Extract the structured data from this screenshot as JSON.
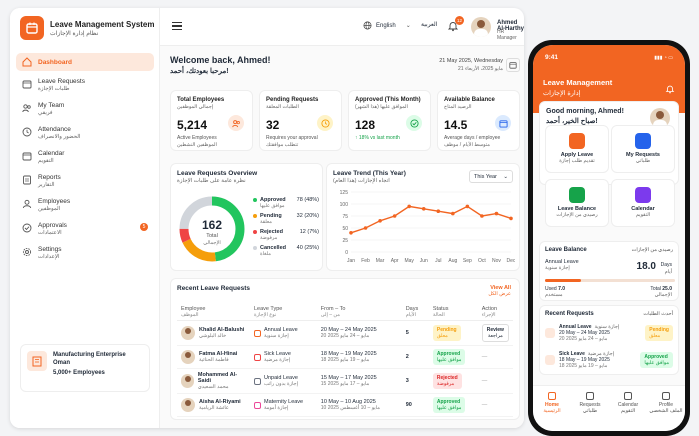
{
  "brand": {
    "title": "Leave Management System",
    "title_ar": "نظام إدارة الإجازات"
  },
  "sidebar": {
    "items": [
      {
        "label": "Dashboard",
        "label_ar": ""
      },
      {
        "label": "Leave Requests",
        "label_ar": "طلبات الإجازة"
      },
      {
        "label": "My Team",
        "label_ar": "فريقي"
      },
      {
        "label": "Attendance",
        "label_ar": "الحضور والانصراف"
      },
      {
        "label": "Calendar",
        "label_ar": "التقويم"
      },
      {
        "label": "Reports",
        "label_ar": "التقارير"
      },
      {
        "label": "Employees",
        "label_ar": "الموظفين"
      },
      {
        "label": "Approvals",
        "label_ar": "الاعتمادات",
        "badge": "5"
      },
      {
        "label": "Settings",
        "label_ar": "الإعدادات"
      }
    ],
    "org": {
      "name": "Manufacturing Enterprise Oman",
      "count": "5,000+ Employees"
    }
  },
  "header": {
    "language": "English",
    "arabic": "العربية",
    "notif_count": "12",
    "user_name": "Ahmed Al-Harthy",
    "user_role": "HR Manager"
  },
  "welcome": {
    "title": "Welcome back, Ahmed!",
    "title_ar": "مرحبا بعودتك، أحمد!",
    "date": "21 May 2025, Wednesday",
    "date_ar": "21 مايو 2025، الأربعاء"
  },
  "stats": [
    {
      "label": "Total Employees",
      "label_ar": "إجمالي الموظفين",
      "value": "5,214",
      "sub": "Active Employees",
      "sub_ar": "الموظفين النشطين",
      "color": "#f26522",
      "bg": "#fde8dc"
    },
    {
      "label": "Pending Requests",
      "label_ar": "الطلبات المعلقة",
      "value": "32",
      "sub": "Requires your approval",
      "sub_ar": "تتطلب موافقتك",
      "color": "#f59e0b",
      "bg": "#fef3c7"
    },
    {
      "label": "Approved (This Month)",
      "label_ar": "الموافق عليها (هذا الشهر)",
      "value": "128",
      "sub": "↑ 18% vs last month",
      "sub_ar": "",
      "color": "#16a34a",
      "bg": "#dcfce7"
    },
    {
      "label": "Available Balance",
      "label_ar": "الرصيد المتاح",
      "value": "14.5",
      "sub": "Average days / employee",
      "sub_ar": "متوسط الأيام / موظف",
      "color": "#2563eb",
      "bg": "#dbeafe"
    }
  ],
  "overview": {
    "title": "Leave Requests Overview",
    "title_ar": "نظرة عامة على طلبات الإجازة",
    "center_value": "162",
    "center_label": "Total",
    "center_label_ar": "الإجمالي",
    "legend": [
      {
        "label": "Approved",
        "label_ar": "موافق عليها",
        "value": "78 (48%)",
        "fraction": 0.48,
        "color": "#22c55e"
      },
      {
        "label": "Pending",
        "label_ar": "معلقة",
        "value": "32 (20%)",
        "fraction": 0.2,
        "color": "#f59e0b"
      },
      {
        "label": "Rejected",
        "label_ar": "مرفوضة",
        "value": "12 (7%)",
        "fraction": 0.07,
        "color": "#ef4444"
      },
      {
        "label": "Cancelled",
        "label_ar": "ملغاة",
        "value": "40 (25%)",
        "fraction": 0.25,
        "color": "#d1d5db"
      }
    ]
  },
  "trend": {
    "title": "Leave Trend (This Year)",
    "title_ar": "اتجاه الإجازات (هذا العام)",
    "select": "This Year"
  },
  "chart_data": {
    "type": "line",
    "categories": [
      "Jan",
      "Feb",
      "Mar",
      "Apr",
      "May",
      "Jun",
      "Jul",
      "Aug",
      "Sep",
      "Oct",
      "Nov",
      "Dec"
    ],
    "values": [
      40,
      50,
      65,
      75,
      95,
      90,
      85,
      80,
      95,
      75,
      80,
      70
    ],
    "ylim": [
      0,
      125
    ],
    "yticks": [
      0,
      25,
      50,
      75,
      100,
      125
    ],
    "color": "#f26522"
  },
  "recent": {
    "title": "Recent Leave Requests",
    "view_all": "View All",
    "view_all_ar": "عرض الكل",
    "columns": [
      {
        "en": "Employee",
        "ar": "الموظف"
      },
      {
        "en": "Leave Type",
        "ar": "نوع الإجازة"
      },
      {
        "en": "From – To",
        "ar": "من – إلى"
      },
      {
        "en": "Days",
        "ar": "الأيام"
      },
      {
        "en": "Status",
        "ar": "الحالة"
      },
      {
        "en": "Action",
        "ar": "الإجراء"
      }
    ],
    "rows": [
      {
        "name": "Khalid Al-Balushi",
        "name_ar": "خالد البلوشي",
        "type": "Annual Leave",
        "type_ar": "إجازة سنوية",
        "dates": "20 May – 24 May 2025",
        "dates_ar": "20 مايو – 24 مايو 2025",
        "days": "5",
        "status": "Pending",
        "status_ar": "معلق",
        "status_color": "#f59e0b",
        "status_bg": "#fef3c7",
        "action": "Review",
        "action_ar": "مراجعة",
        "type_color": "#f26522"
      },
      {
        "name": "Fatma Al-Hinai",
        "name_ar": "فاطمة الحنائية",
        "type": "Sick Leave",
        "type_ar": "إجازة مرضية",
        "dates": "18 May – 19 May 2025",
        "dates_ar": "18 مايو – 19 مايو 2025",
        "days": "2",
        "status": "Approved",
        "status_ar": "موافق عليها",
        "status_color": "#16a34a",
        "status_bg": "#dcfce7",
        "action": "—",
        "action_ar": "",
        "type_color": "#ef4444"
      },
      {
        "name": "Mohammed Al-Saidi",
        "name_ar": "محمد السعيدي",
        "type": "Unpaid Leave",
        "type_ar": "إجازة بدون راتب",
        "dates": "15 May – 17 May 2025",
        "dates_ar": "15 مايو – 17 مايو 2025",
        "days": "3",
        "status": "Rejected",
        "status_ar": "مرفوضة",
        "status_color": "#dc2626",
        "status_bg": "#fee2e2",
        "action": "—",
        "action_ar": "",
        "type_color": "#6b7280"
      },
      {
        "name": "Aisha Al-Riyami",
        "name_ar": "عائشة الريامية",
        "type": "Maternity Leave",
        "type_ar": "إجازة أمومة",
        "dates": "10 May – 10 Aug 2025",
        "dates_ar": "10 مايو – 10 أغسطس 2025",
        "days": "90",
        "status": "Approved",
        "status_ar": "موافق عليها",
        "status_color": "#16a34a",
        "status_bg": "#dcfce7",
        "action": "—",
        "action_ar": "",
        "type_color": "#ec4899"
      }
    ]
  },
  "mobile": {
    "time": "9:41",
    "title": "Leave Management",
    "title_ar": "إدارة الإجازات",
    "greeting": "Good morning, Ahmed!",
    "greeting_ar": "صباح الخير، أحمد!",
    "actions": [
      {
        "label": "Apply Leave",
        "label_ar": "تقديم طلب إجازة",
        "color": "#f26522"
      },
      {
        "label": "My Requests",
        "label_ar": "طلباتي",
        "color": "#2563eb"
      },
      {
        "label": "Leave Balance",
        "label_ar": "رصيدي من الإجازات",
        "color": "#16a34a"
      },
      {
        "label": "Calendar",
        "label_ar": "التقويم",
        "color": "#7c3aed"
      }
    ],
    "balance": {
      "title": "Leave Balance",
      "title_ar": "رصيدي من الإجازات",
      "type": "Annual Leave",
      "type_ar": "إجازة سنوية",
      "days": "18.0",
      "days_label": "Days",
      "days_label_ar": "أيام",
      "used_label": "Used",
      "used": "7.0",
      "used_ar": "مستخدم",
      "total_label": "Total",
      "total": "25.0",
      "total_ar": "الإجمالي",
      "used_fraction": 0.28
    },
    "recent": {
      "title": "Recent Requests",
      "title_ar": "أحدث الطلبات",
      "rows": [
        {
          "type": "Annual Leave",
          "type_ar": "إجازة سنوية",
          "dates": "20 May – 24 May 2025",
          "dates_ar": "20 مايو – 24 مايو 2025",
          "status": "Pending",
          "status_ar": "معلق",
          "color": "#f59e0b",
          "bg": "#fef3c7"
        },
        {
          "type": "Sick Leave",
          "type_ar": "إجازة مرضية",
          "dates": "18 May – 19 May 2025",
          "dates_ar": "18 مايو – 19 مايو 2025",
          "status": "Approved",
          "status_ar": "موافق عليها",
          "color": "#16a34a",
          "bg": "#dcfce7"
        }
      ]
    },
    "tabs": [
      {
        "label": "Home",
        "label_ar": "الرئيسية"
      },
      {
        "label": "Requests",
        "label_ar": "طلباتي"
      },
      {
        "label": "Calendar",
        "label_ar": "التقويم"
      },
      {
        "label": "Profile",
        "label_ar": "الملف الشخصي"
      }
    ]
  }
}
